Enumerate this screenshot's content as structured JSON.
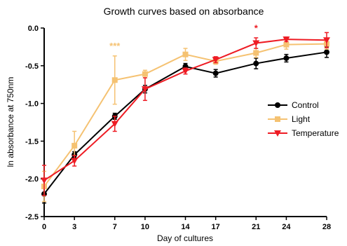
{
  "chart_data": {
    "type": "line",
    "title": "Growth curves based on absorbance",
    "xlabel": "Day of cultures",
    "ylabel": "ln absorbance at 750nm",
    "x": [
      0,
      3,
      7,
      10,
      14,
      17,
      21,
      24,
      28
    ],
    "x_ticks": [
      "0",
      "3",
      "7",
      "10",
      "14",
      "17",
      "21",
      "24",
      "28"
    ],
    "y_ticks": [
      "0.0",
      "-0.5",
      "-1.0",
      "-1.5",
      "-2.0",
      "-2.5"
    ],
    "ylim": [
      -2.5,
      0.0
    ],
    "xlim": [
      0,
      28
    ],
    "grid": false,
    "legend_position": "right",
    "series": [
      {
        "name": "Control",
        "color": "#000000",
        "marker": "circle",
        "values": [
          -2.2,
          -1.68,
          -1.17,
          -0.81,
          -0.51,
          -0.6,
          -0.47,
          -0.4,
          -0.32
        ],
        "errors": [
          0.12,
          0.04,
          0.04,
          0.05,
          0.04,
          0.05,
          0.07,
          0.05,
          0.07
        ]
      },
      {
        "name": "Light",
        "color": "#F5C272",
        "marker": "square",
        "values": [
          -2.1,
          -1.56,
          -0.69,
          -0.61,
          -0.35,
          -0.44,
          -0.33,
          -0.22,
          -0.21
        ],
        "errors": [
          0.2,
          0.19,
          0.32,
          0.05,
          0.08,
          0.04,
          0.06,
          0.06,
          0.07
        ]
      },
      {
        "name": "Temperature",
        "color": "#EE1C24",
        "marker": "triangle-down",
        "values": [
          -2.02,
          -1.76,
          -1.27,
          -0.81,
          -0.57,
          -0.42,
          -0.2,
          -0.15,
          -0.16
        ],
        "errors": [
          0.2,
          0.07,
          0.1,
          0.15,
          0.04,
          0.04,
          0.07,
          0.03,
          0.1
        ]
      }
    ],
    "annotations": [
      {
        "text": "***",
        "x": 7,
        "y": -0.28,
        "color": "#F5C272"
      },
      {
        "text": "*",
        "x": 21,
        "y": -0.04,
        "color": "#EE1C24"
      }
    ]
  }
}
